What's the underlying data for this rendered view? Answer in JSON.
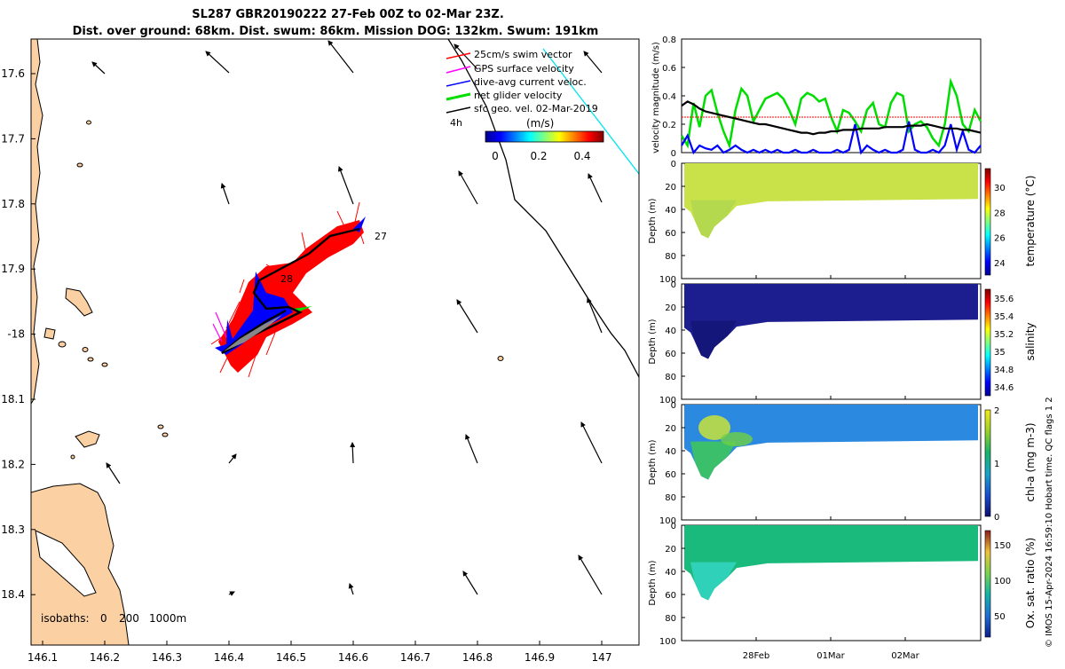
{
  "title": {
    "line1": "SL287 GBR20190222 27-Feb 00Z to 02-Mar 23Z.",
    "line2": "Dist. over ground: 68km. Dist. swum: 86km. Mission DOG: 132km. Swum: 191km"
  },
  "map": {
    "lon_ticks": [
      "146.1",
      "146.2",
      "146.3",
      "146.4",
      "146.5",
      "146.6",
      "146.7",
      "146.8",
      "146.9",
      "147"
    ],
    "lat_ticks": [
      "17.6",
      "17.7",
      "17.8",
      "17.9",
      "-18",
      "18.1",
      "18.2",
      "18.3",
      "18.4"
    ],
    "legend": {
      "items": [
        {
          "label": "25cm/s swim vector",
          "color": "#ff0000"
        },
        {
          "label": "GPS surface velocity",
          "color": "#ff00ff"
        },
        {
          "label": "dive-avg current veloc.",
          "color": "#0000ff"
        },
        {
          "label": "net glider velocity",
          "color": "#00dd00"
        },
        {
          "label": "sfc geo. vel. 02-Mar-2019",
          "color": "#000000"
        }
      ],
      "scale_label": "4h",
      "colorbar_title": "(m/s)",
      "colorbar_ticks": [
        "0",
        "0.2",
        "0.4"
      ]
    },
    "day_labels": [
      "27",
      "28"
    ],
    "isobaths": {
      "label": "isobaths:",
      "levels": [
        "0",
        "200",
        "1000m"
      ]
    }
  },
  "chart_data": [
    {
      "type": "line",
      "ylabel": "velocity magnitude (m/s)",
      "ylim": [
        0,
        0.8
      ],
      "yticks": [
        "0",
        "0.2",
        "0.4",
        "0.6",
        "0.8"
      ],
      "series": [
        {
          "name": "net glider velocity",
          "color": "#00dd00",
          "values": [
            0.12,
            0.05,
            0.35,
            0.18,
            0.4,
            0.44,
            0.28,
            0.15,
            0.05,
            0.3,
            0.45,
            0.4,
            0.22,
            0.3,
            0.38,
            0.4,
            0.42,
            0.38,
            0.3,
            0.2,
            0.38,
            0.42,
            0.4,
            0.36,
            0.38,
            0.25,
            0.15,
            0.3,
            0.28,
            0.22,
            0.15,
            0.3,
            0.35,
            0.2,
            0.18,
            0.35,
            0.42,
            0.4,
            0.15,
            0.2,
            0.22,
            0.18,
            0.1,
            0.05,
            0.2,
            0.5,
            0.4,
            0.2,
            0.15,
            0.3,
            0.22
          ]
        },
        {
          "name": "dive-avg current",
          "color": "#0000ff",
          "values": [
            0.05,
            0.12,
            0.0,
            0.05,
            0.03,
            0.02,
            0.05,
            0.0,
            0.02,
            0.05,
            0.02,
            0.0,
            0.02,
            0.0,
            0.02,
            0.0,
            0.02,
            0.0,
            0.0,
            0.02,
            0.0,
            0.0,
            0.02,
            0.0,
            0.0,
            0.0,
            0.02,
            0.0,
            0.02,
            0.2,
            0.0,
            0.05,
            0.02,
            0.0,
            0.02,
            0.0,
            0.0,
            0.02,
            0.22,
            0.02,
            0.0,
            0.0,
            0.02,
            0.0,
            0.05,
            0.2,
            0.02,
            0.15,
            0.02,
            0.0,
            0.05
          ]
        },
        {
          "name": "swim speed",
          "color": "#ff0000",
          "dashed": true,
          "values": [
            0.25,
            0.25,
            0.25,
            0.25,
            0.25,
            0.25,
            0.25,
            0.25,
            0.25,
            0.25,
            0.25,
            0.25,
            0.25,
            0.25,
            0.25,
            0.25,
            0.25,
            0.25,
            0.25,
            0.25,
            0.25,
            0.25,
            0.25,
            0.25,
            0.25,
            0.25,
            0.25,
            0.25,
            0.25,
            0.25,
            0.25,
            0.25,
            0.25,
            0.25,
            0.25,
            0.25,
            0.25,
            0.25,
            0.25,
            0.25,
            0.25,
            0.25,
            0.25,
            0.25,
            0.25,
            0.25,
            0.25,
            0.25,
            0.25,
            0.25,
            0.25
          ]
        },
        {
          "name": "smoothed speed",
          "color": "#000000",
          "values": [
            0.33,
            0.36,
            0.34,
            0.31,
            0.29,
            0.28,
            0.27,
            0.26,
            0.25,
            0.24,
            0.23,
            0.22,
            0.21,
            0.2,
            0.2,
            0.19,
            0.18,
            0.17,
            0.16,
            0.15,
            0.14,
            0.14,
            0.13,
            0.14,
            0.14,
            0.15,
            0.15,
            0.16,
            0.16,
            0.16,
            0.17,
            0.17,
            0.17,
            0.17,
            0.18,
            0.18,
            0.18,
            0.18,
            0.19,
            0.19,
            0.19,
            0.2,
            0.19,
            0.18,
            0.17,
            0.17,
            0.17,
            0.16,
            0.16,
            0.15,
            0.14
          ]
        }
      ]
    },
    {
      "type": "heatmap",
      "ylabel": "Depth (m)",
      "clabel": "temperature (°C)",
      "ylim": [
        0,
        100
      ],
      "yticks": [
        "0",
        "20",
        "40",
        "60",
        "80",
        "100"
      ],
      "cticks": [
        "24",
        "26",
        "28",
        "30"
      ],
      "crange": [
        23,
        31.5
      ],
      "value": 28.5
    },
    {
      "type": "heatmap",
      "ylabel": "Depth (m)",
      "clabel": "salinity",
      "ylim": [
        0,
        100
      ],
      "yticks": [
        "0",
        "20",
        "40",
        "60",
        "80",
        "100"
      ],
      "cticks": [
        "34.6",
        "34.8",
        "35",
        "35.2",
        "35.4",
        "35.6"
      ],
      "crange": [
        34.5,
        35.7
      ],
      "value": 34.55
    },
    {
      "type": "heatmap",
      "ylabel": "Depth (m)",
      "clabel": "chl-a (mg m-3)",
      "ylim": [
        0,
        100
      ],
      "yticks": [
        "0",
        "20",
        "40",
        "60",
        "80",
        "100"
      ],
      "cticks": [
        "0",
        "1",
        "2"
      ],
      "crange": [
        0,
        2
      ],
      "value": 0.6
    },
    {
      "type": "heatmap",
      "ylabel": "Depth (m)",
      "clabel": "Ox. sat. ratio (%)",
      "ylim": [
        0,
        100
      ],
      "yticks": [
        "0",
        "20",
        "40",
        "60",
        "80",
        "100"
      ],
      "cticks": [
        "50",
        "100",
        "150"
      ],
      "crange": [
        20,
        170
      ],
      "value": 95
    }
  ],
  "time_axis": {
    "labels": [
      "28Feb",
      "01Mar",
      "02Mar"
    ]
  },
  "footer": {
    "credit": "© IMOS 15-Apr-2024 16:59:10 Hobart time. QC flags 1  2"
  }
}
